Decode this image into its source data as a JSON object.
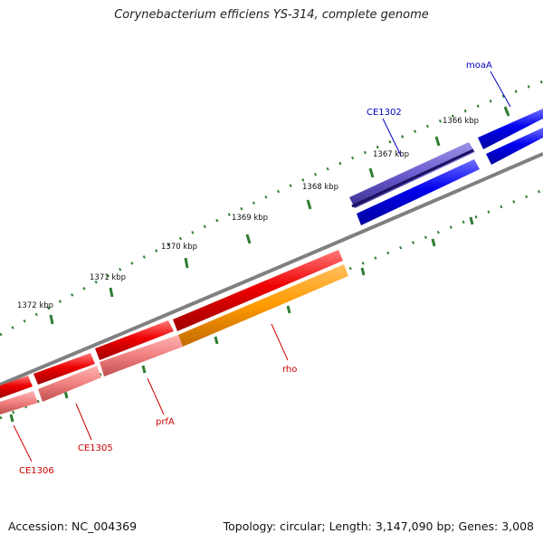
{
  "title": "Corynebacterium efficiens YS-314, complete genome",
  "footer": {
    "accession": "Accession: NC_004369",
    "summary": "Topology: circular; Length: 3,147,090 bp; Genes: 3,008"
  },
  "ticks": [
    {
      "label": "1366 kbp"
    },
    {
      "label": "1367 kbp"
    },
    {
      "label": "1368 kbp"
    },
    {
      "label": "1369 kbp"
    },
    {
      "label": "1370 kbp"
    },
    {
      "label": "1371 kbp"
    },
    {
      "label": "1372 kbp"
    }
  ],
  "genes": [
    {
      "label": "moaA",
      "color": "#0000bb"
    },
    {
      "label": "CE1302",
      "color": "#0000bb"
    },
    {
      "label": "rho",
      "color": "#cc0000"
    },
    {
      "label": "prfA",
      "color": "#cc0000"
    },
    {
      "label": "CE1305",
      "color": "#cc0000"
    },
    {
      "label": "CE1306",
      "color": "#cc0000"
    }
  ],
  "colors": {
    "backbone": "#808080",
    "tick": "#2e7d32",
    "blue_gene": "#0000ee",
    "purple_gene": "#6a5acd",
    "red_gene": "#ee0000",
    "pink_gene": "#f08080",
    "orange_gene": "#ff9900"
  }
}
